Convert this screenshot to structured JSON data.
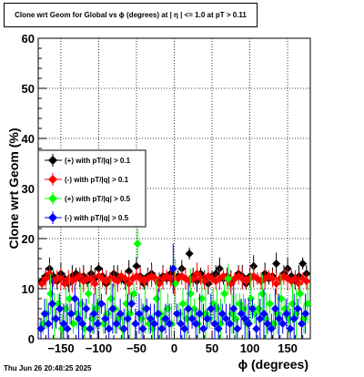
{
  "window": {
    "title": "Clone wrt Geom for Global vs ϕ (degrees) at |  η  | <= 1.0 at pT > 0.11",
    "timestamp": "Thu Jun 26 20:48:25 2025"
  },
  "chart_data": {
    "type": "scatter",
    "title": "Clone wrt Geom for Global vs ϕ (degrees) at |  η  | <= 1.0 at pT > 0.11",
    "xlabel": "ϕ (degrees)",
    "ylabel": "Clone wrt Geom (%)",
    "xlim": [
      -180,
      180
    ],
    "ylim": [
      0,
      60
    ],
    "xticks": [
      -150,
      -100,
      -50,
      0,
      50,
      100,
      150
    ],
    "xtick_labels": [
      "−150",
      "−100",
      "−50",
      "0",
      "50",
      "100",
      "150"
    ],
    "yticks": [
      0,
      10,
      20,
      30,
      40,
      50,
      60
    ],
    "grid": true,
    "legend_position": "left-middle",
    "x": [
      -175,
      -170,
      -165,
      -160,
      -155,
      -150,
      -145,
      -140,
      -135,
      -130,
      -125,
      -120,
      -115,
      -110,
      -105,
      -100,
      -95,
      -90,
      -85,
      -80,
      -75,
      -70,
      -65,
      -60,
      -55,
      -50,
      -45,
      -40,
      -35,
      -30,
      -25,
      -20,
      -15,
      -10,
      -5,
      0,
      5,
      10,
      15,
      20,
      25,
      30,
      35,
      40,
      45,
      50,
      55,
      60,
      65,
      70,
      75,
      80,
      85,
      90,
      95,
      100,
      105,
      110,
      115,
      120,
      125,
      130,
      135,
      140,
      145,
      150,
      155,
      160,
      165,
      170,
      175
    ],
    "series": [
      {
        "name": "(+) with pT/|q| > 0.1",
        "color": "#000000",
        "values": [
          11.5,
          12.5,
          14,
          12.5,
          11.5,
          13,
          12,
          11,
          12.5,
          13,
          12,
          12.5,
          11.5,
          13,
          12,
          14,
          12.5,
          11,
          12,
          13,
          12.5,
          12,
          11.5,
          13.5,
          12,
          14.5,
          12.5,
          11,
          12.5,
          13,
          12,
          11.5,
          12.5,
          12,
          13,
          11.5,
          12.5,
          14,
          12,
          17,
          12.5,
          11.5,
          13,
          12,
          11,
          12.5,
          13,
          14,
          12,
          12.5,
          11.5,
          12,
          13,
          12.5,
          11,
          12.5,
          14.5,
          12,
          11.5,
          13,
          12,
          12.5,
          15,
          12,
          13,
          14,
          12.5,
          11.5,
          12.5,
          15,
          13
        ]
      },
      {
        "name": "(-) with pT/|q| > 0.1",
        "color": "#ff0000",
        "values": [
          11,
          12,
          13,
          11.5,
          12,
          12,
          11,
          12,
          11.5,
          12,
          12.5,
          11.5,
          12,
          12,
          11,
          12.5,
          12,
          11.5,
          12,
          12,
          11.5,
          12.5,
          12,
          11,
          12,
          12.5,
          12,
          11.5,
          12,
          12.5,
          12,
          11,
          12,
          12.5,
          12,
          11,
          12,
          12.5,
          12,
          11.5,
          12,
          13,
          12,
          11.5,
          12.5,
          12,
          11.5,
          12,
          12.5,
          12,
          11,
          12,
          12.5,
          12,
          11.5,
          12,
          12.5,
          12,
          11.5,
          12,
          12.5,
          12,
          11,
          12,
          12.5,
          12,
          11.5,
          12,
          11,
          12,
          11.5
        ]
      },
      {
        "name": "(+) with pT/|q| > 0.5",
        "color": "#00ff00",
        "values": [
          3,
          5,
          9,
          4,
          7,
          2,
          6,
          8,
          3,
          5,
          7,
          2,
          9,
          4,
          6,
          7,
          3,
          5,
          8,
          6,
          4,
          2,
          7,
          5,
          9,
          19,
          4,
          6,
          3,
          2,
          8,
          5,
          4,
          6,
          3,
          11,
          5,
          7,
          4,
          9,
          6,
          3,
          8,
          5,
          4,
          7,
          6,
          3,
          9,
          12,
          5,
          4,
          7,
          6,
          3,
          8,
          5,
          6,
          9,
          4,
          7,
          3,
          5,
          8,
          6,
          4,
          7,
          5,
          9,
          4,
          7
        ]
      },
      {
        "name": "(-) with pT/|q| > 0.5",
        "color": "#0000ff",
        "values": [
          2,
          5,
          3,
          7,
          4,
          6,
          3,
          2,
          5,
          8,
          4,
          3,
          6,
          2,
          5,
          3,
          7,
          4,
          2,
          6,
          3,
          5,
          2,
          4,
          7,
          3,
          5,
          2,
          6,
          4,
          3,
          5,
          2,
          4,
          3,
          14,
          5,
          3,
          2,
          6,
          4,
          3,
          5,
          2,
          4,
          6,
          3,
          2,
          5,
          4,
          3,
          6,
          2,
          5,
          4,
          3,
          6,
          2,
          4,
          5,
          3,
          2,
          6,
          4,
          3,
          5,
          2,
          4,
          6,
          3,
          5
        ]
      }
    ]
  }
}
